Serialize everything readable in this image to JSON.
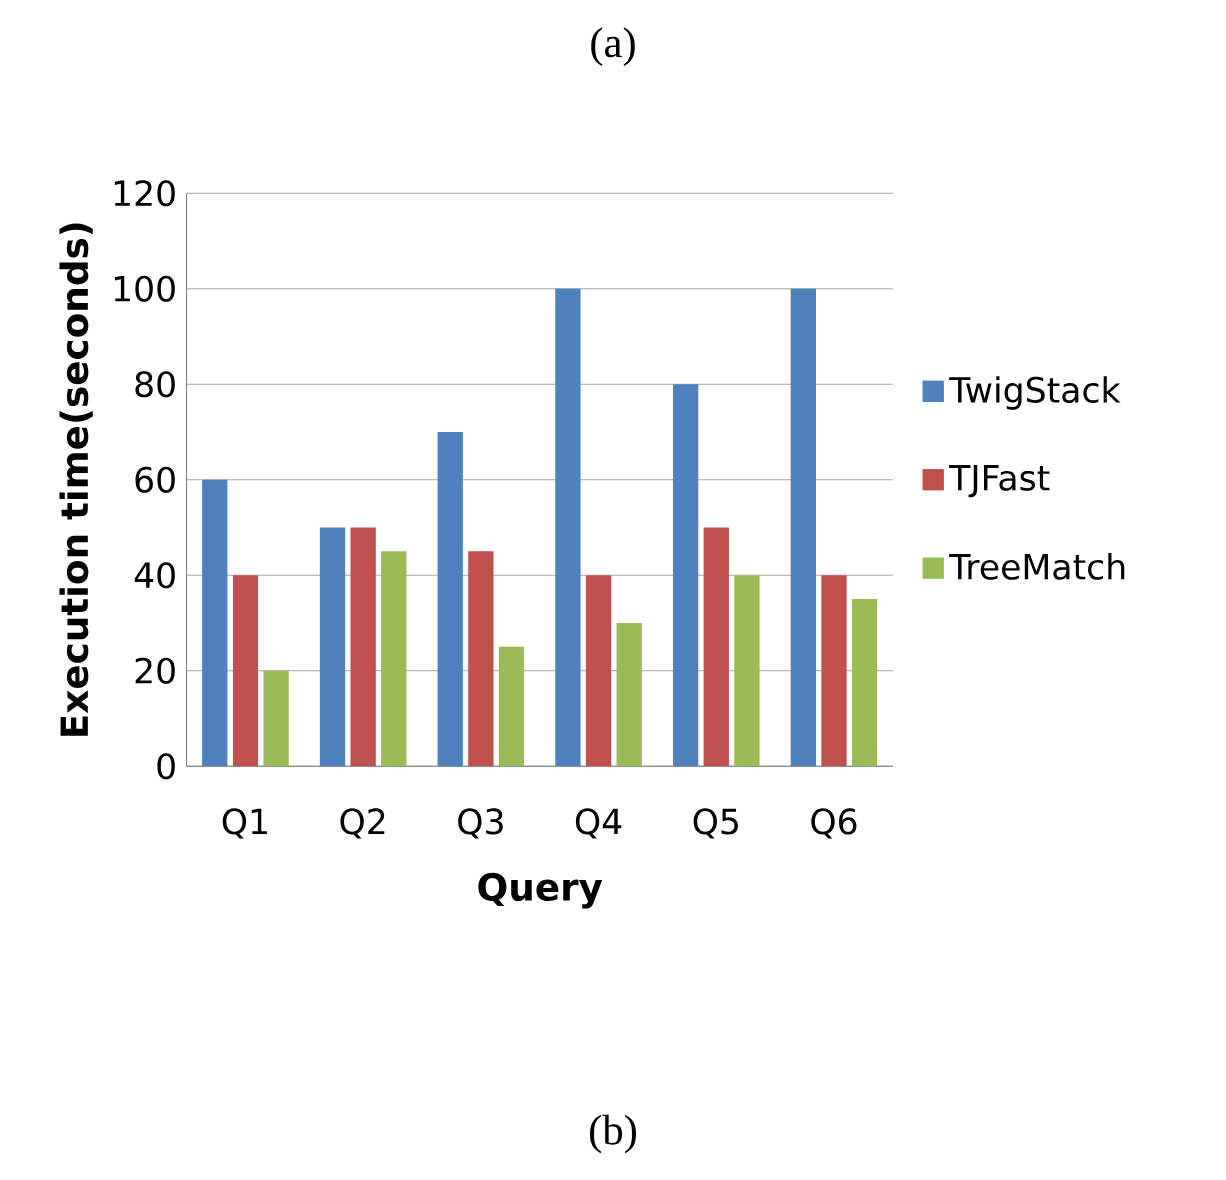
{
  "chart_data": {
    "type": "bar",
    "xlabel": "Query",
    "ylabel": "Execution time(seconds)",
    "categories": [
      "Q1",
      "Q2",
      "Q3",
      "Q4",
      "Q5",
      "Q6"
    ],
    "series": [
      {
        "name": "TwigStack",
        "color": "#4f81bd",
        "values": [
          60,
          50,
          70,
          100,
          80,
          100
        ]
      },
      {
        "name": "TJFast",
        "color": "#c0504d",
        "values": [
          40,
          50,
          45,
          40,
          50,
          40
        ]
      },
      {
        "name": "TreeMatch",
        "color": "#9bbb59",
        "values": [
          20,
          45,
          25,
          30,
          40,
          35
        ]
      }
    ],
    "ylim": [
      0,
      120
    ],
    "yticks": [
      0,
      20,
      40,
      60,
      80,
      100,
      120
    ],
    "grid": "y",
    "legend": "right",
    "annotations": [
      "(a)",
      "(b)"
    ]
  }
}
